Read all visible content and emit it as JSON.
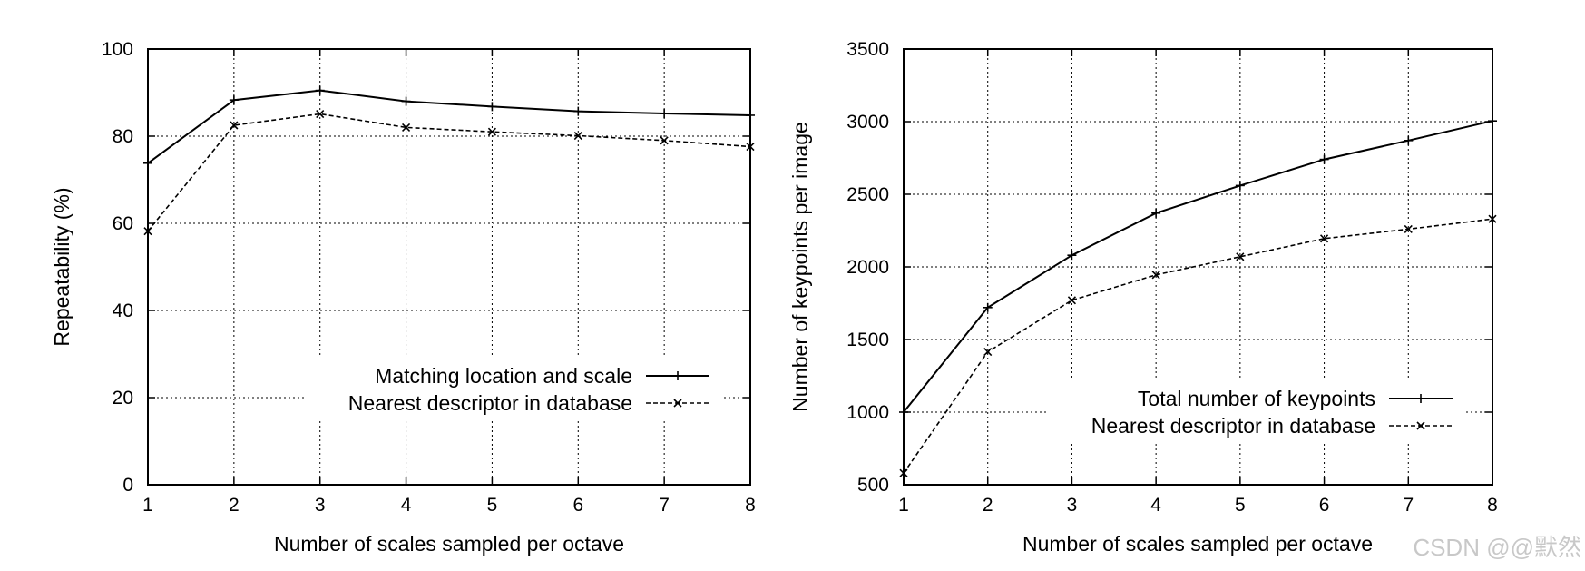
{
  "chart_data": [
    {
      "type": "line",
      "title": "",
      "xlabel": "Number of scales sampled per octave",
      "ylabel": "Repeatability (%)",
      "xlim": [
        1,
        8
      ],
      "ylim": [
        0,
        100
      ],
      "x_ticks": [
        "1",
        "2",
        "3",
        "4",
        "5",
        "6",
        "7",
        "8"
      ],
      "y_ticks": [
        "0",
        "20",
        "40",
        "60",
        "80",
        "100"
      ],
      "grid": true,
      "legend_position": "lower-right",
      "x": [
        1,
        2,
        3,
        4,
        5,
        6,
        7,
        8
      ],
      "series": [
        {
          "name": "Matching location and scale",
          "style": "solid",
          "marker": "plus",
          "values": [
            73.8,
            88.3,
            90.5,
            88.0,
            86.8,
            85.7,
            85.2,
            84.8
          ]
        },
        {
          "name": "Nearest descriptor in database",
          "style": "dashed",
          "marker": "cross",
          "values": [
            58.2,
            82.5,
            85.1,
            82.0,
            81.0,
            80.1,
            79.0,
            77.6
          ]
        }
      ]
    },
    {
      "type": "line",
      "title": "",
      "xlabel": "Number of scales sampled per octave",
      "ylabel": "Number of keypoints per image",
      "xlim": [
        1,
        8
      ],
      "ylim": [
        500,
        3500
      ],
      "x_ticks": [
        "1",
        "2",
        "3",
        "4",
        "5",
        "6",
        "7",
        "8"
      ],
      "y_ticks": [
        "500",
        "1000",
        "1500",
        "2000",
        "2500",
        "3000",
        "3500"
      ],
      "grid": true,
      "legend_position": "lower-right",
      "x": [
        1,
        2,
        3,
        4,
        5,
        6,
        7,
        8
      ],
      "series": [
        {
          "name": "Total number of keypoints",
          "style": "solid",
          "marker": "plus",
          "values": [
            1000,
            1720,
            2080,
            2370,
            2560,
            2740,
            2870,
            3005
          ]
        },
        {
          "name": "Nearest descriptor in database",
          "style": "dashed",
          "marker": "cross",
          "values": [
            580,
            1415,
            1770,
            1945,
            2070,
            2195,
            2260,
            2330
          ]
        }
      ]
    }
  ],
  "watermark": "CSDN @@默然"
}
